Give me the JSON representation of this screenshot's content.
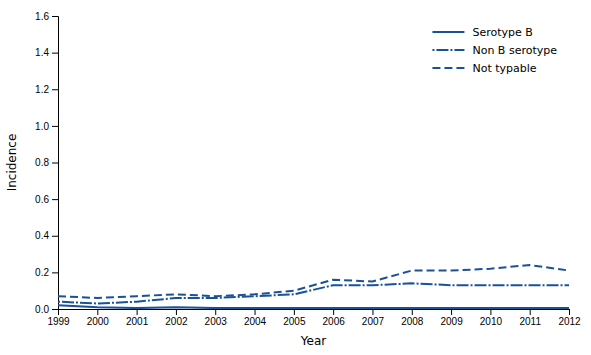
{
  "chart_data": {
    "type": "line",
    "xlabel": "Year",
    "ylabel": "Incidence",
    "x": [
      1999,
      2000,
      2001,
      2002,
      2003,
      2004,
      2005,
      2006,
      2007,
      2008,
      2009,
      2010,
      2011,
      2012
    ],
    "xlim": [
      1999,
      2012
    ],
    "xticks": [
      1999,
      2000,
      2001,
      2002,
      2003,
      2004,
      2005,
      2006,
      2007,
      2008,
      2009,
      2010,
      2011,
      2012
    ],
    "ylim": [
      0.0,
      1.6
    ],
    "yticks": [
      {
        "value": 0.0,
        "label": "0.0"
      },
      0.2,
      0.4,
      0.6,
      0.8,
      {
        "value": 1.0,
        "label": "1.0"
      },
      1.2,
      1.4,
      1.6
    ],
    "series": [
      {
        "name": "Serotype B",
        "color": "#1a5296",
        "line_style": "solid",
        "values": [
          0.02,
          0.01,
          0.005,
          0.01,
          0.005,
          0.005,
          0.005,
          0.005,
          0.005,
          0.005,
          0.005,
          0.005,
          0.005,
          0.005
        ]
      },
      {
        "name": "Non B serotype",
        "color": "#1a5296",
        "line_style": "dashdot",
        "values": [
          0.04,
          0.03,
          0.04,
          0.06,
          0.06,
          0.07,
          0.08,
          0.13,
          0.13,
          0.14,
          0.13,
          0.13,
          0.13,
          0.13
        ]
      },
      {
        "name": "Not typable",
        "color": "#1a5296",
        "line_style": "dashed",
        "values": [
          0.07,
          0.06,
          0.07,
          0.08,
          0.07,
          0.08,
          0.1,
          0.16,
          0.15,
          0.21,
          0.21,
          0.22,
          0.24,
          0.21
        ]
      }
    ],
    "grid": false,
    "legend": "upper right"
  }
}
